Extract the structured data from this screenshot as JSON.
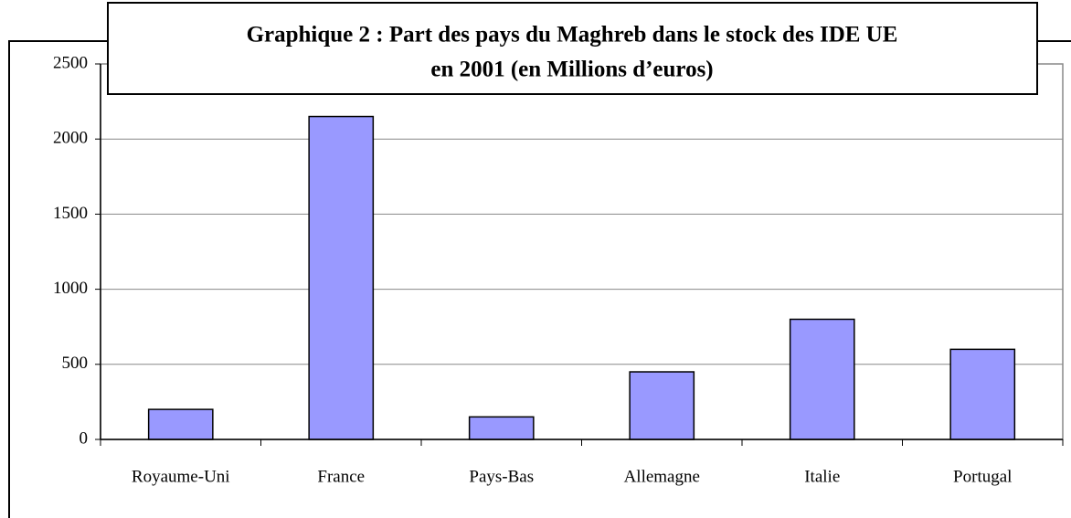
{
  "chart_data": {
    "type": "bar",
    "title": [
      "Graphique 2 : Part des pays du Maghreb dans le stock des IDE UE",
      "en 2001 (en Millions d’euros)"
    ],
    "categories": [
      "Royaume-Uni",
      "France",
      "Pays-Bas",
      "Allemagne",
      "Italie",
      "Portugal"
    ],
    "values": [
      200,
      2150,
      150,
      450,
      800,
      600
    ],
    "color": "#9999ff",
    "ylim": [
      0,
      2500
    ],
    "yticks": [
      0,
      500,
      1000,
      1500,
      2000,
      2500
    ],
    "grid": true
  }
}
